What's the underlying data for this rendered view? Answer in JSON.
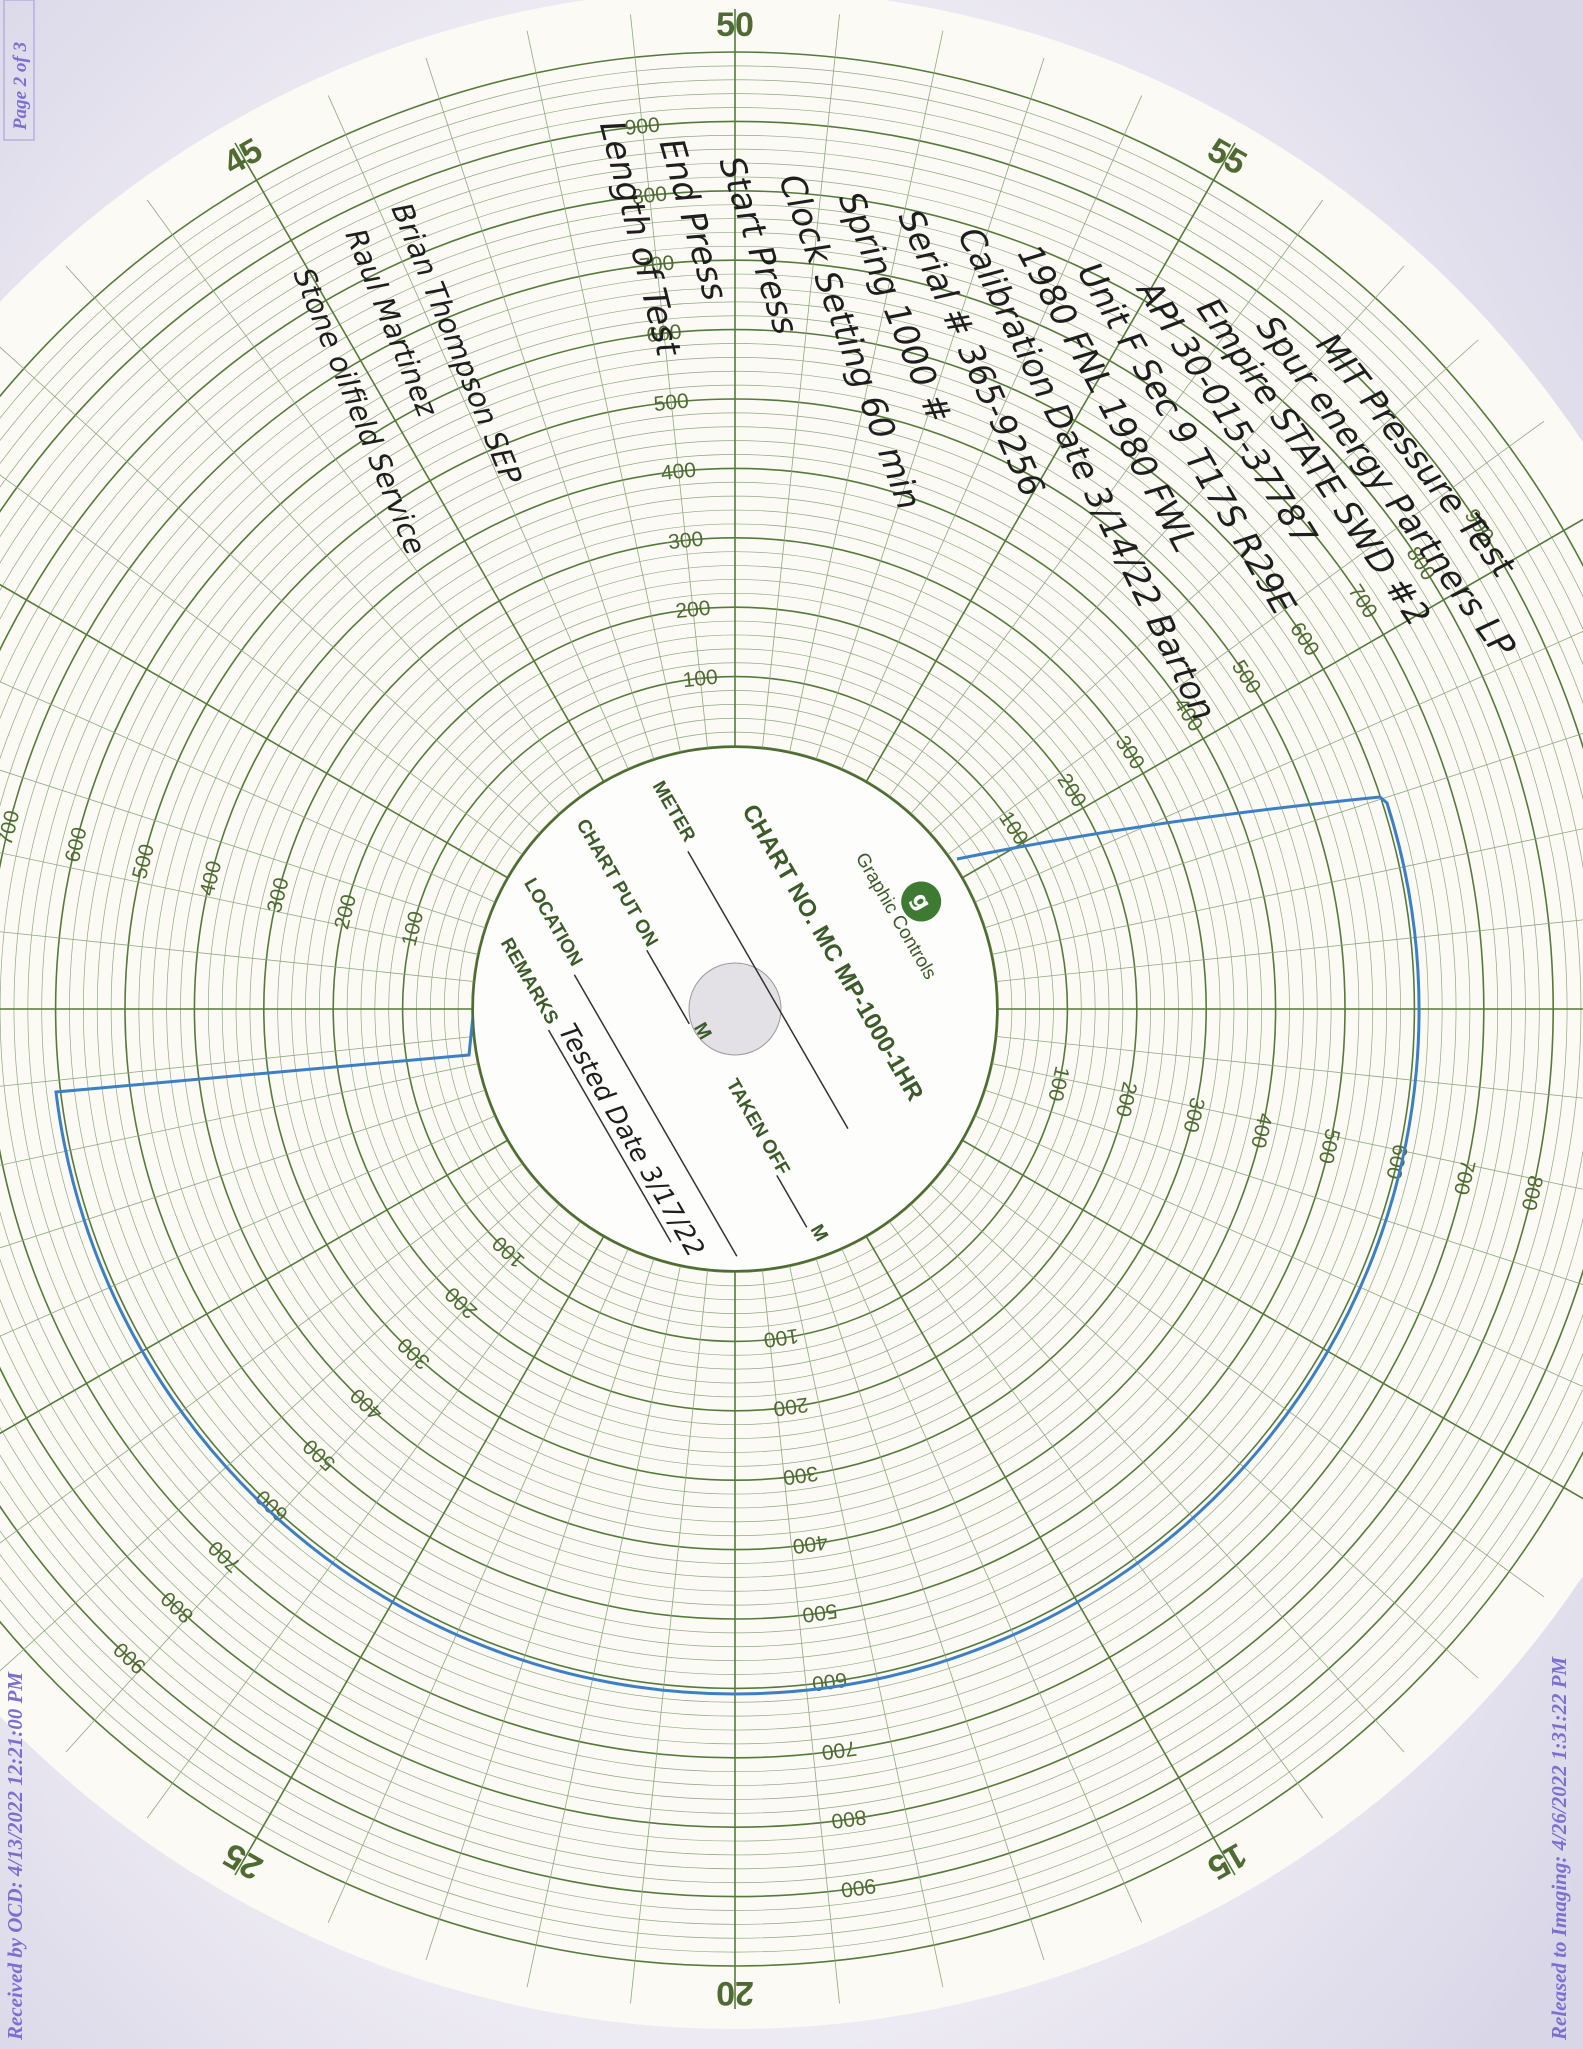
{
  "stamps": {
    "page": "Page 2 of 3",
    "received": "Received by OCD: 4/13/2022 12:21:00 PM",
    "released": "Released to Imaging: 4/26/2022 1:31:22 PM"
  },
  "chart": {
    "brand": "Graphic Controls",
    "chart_no": "CHART NO. MC MP-1000-1HR",
    "meter": "METER",
    "chart_put_on": "CHART PUT ON",
    "taken_off": "TAKEN OFF",
    "m": "M",
    "location": "LOCATION",
    "remarks": "REMARKS",
    "remarks_entry": "Tested Date 3/17/22",
    "minute_labels": [
      "45",
      "50",
      "55",
      "15",
      "20",
      "25"
    ],
    "scale_labels": [
      "100",
      "200",
      "300",
      "400",
      "500",
      "600",
      "700",
      "800",
      "900"
    ]
  },
  "notes": {
    "lines": [
      "MIT Pressure Test",
      "Spur energy Partners LP",
      "Empire STATE SWD #2",
      "API 30-015-37787",
      "Unit F Sec 9 T17S R29E",
      "1980 FNL 1980 FWL",
      "Calibration Date 3/14/22 Barton",
      "Serial # 365-9256",
      "Spring 1000 #",
      "Clock Setting 60 min",
      "Start Press",
      "End Press",
      "Length of Test"
    ],
    "crew": [
      "Brian Thompson SEP",
      "Raul Martinez",
      "Stone oilfield Service"
    ]
  }
}
